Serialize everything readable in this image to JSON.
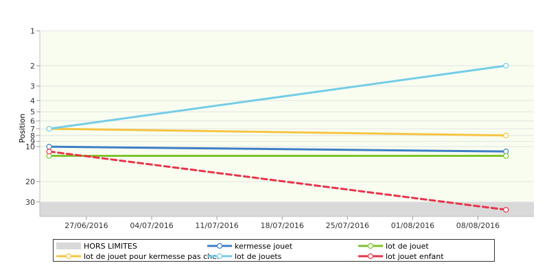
{
  "chart_data": {
    "type": "line",
    "title": "",
    "xlabel": "",
    "ylabel": "Position",
    "y_scale": "log",
    "y_reversed": true,
    "ylim": [
      1,
      40
    ],
    "y_ticks": [
      1,
      2,
      3,
      4,
      5,
      6,
      7,
      8,
      9,
      10,
      20,
      30
    ],
    "y_tick_labels": [
      "1",
      "2",
      "3",
      "4",
      "5",
      "6",
      "7",
      "8",
      "9",
      "10",
      "20",
      "30"
    ],
    "x_range": [
      "2016-06-22",
      "2016-08-14"
    ],
    "x_ticks": [
      "2016-06-27",
      "2016-07-04",
      "2016-07-11",
      "2016-07-18",
      "2016-07-25",
      "2016-08-01",
      "2016-08-08"
    ],
    "x_tick_labels": [
      "27/06/2016",
      "04/07/2016",
      "11/07/2016",
      "18/07/2016",
      "25/07/2016",
      "01/08/2016",
      "08/08/2016"
    ],
    "grid": true,
    "out_of_range_band": {
      "name": "HORS LIMITES",
      "from": 30,
      "to": 40,
      "color": "#d9d9d9"
    },
    "plot_background": "#f8fdf0",
    "legend_position": "bottom",
    "series": [
      {
        "name": "kermesse jouet",
        "color": "#3d7ec6",
        "dashed": false,
        "points": [
          [
            "2016-06-23",
            10
          ],
          [
            "2016-08-11",
            11
          ]
        ]
      },
      {
        "name": "lot de jouet",
        "color": "#7dc42b",
        "dashed": false,
        "points": [
          [
            "2016-06-23",
            12
          ],
          [
            "2016-08-11",
            12
          ]
        ]
      },
      {
        "name": "lot de jouet pour kermesse pas cher",
        "color": "#f6c443",
        "dashed": false,
        "points": [
          [
            "2016-06-23",
            7
          ],
          [
            "2016-08-11",
            8
          ]
        ]
      },
      {
        "name": "lot de jouets",
        "color": "#74cde6",
        "dashed": false,
        "points": [
          [
            "2016-06-23",
            7
          ],
          [
            "2016-08-11",
            2
          ]
        ]
      },
      {
        "name": "lot jouet enfant",
        "color": "#e8334a",
        "dashed": true,
        "points": [
          [
            "2016-06-23",
            11
          ],
          [
            "2016-08-11",
            35
          ]
        ]
      }
    ]
  }
}
